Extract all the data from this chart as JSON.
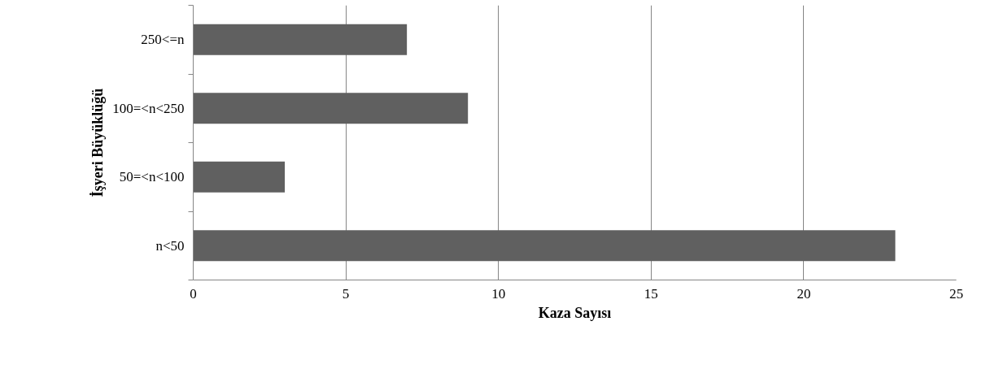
{
  "chart_data": {
    "type": "bar",
    "orientation": "horizontal",
    "xlabel": "Kaza Sayısı",
    "ylabel": "İşyeri Büyüklüğü",
    "categories": [
      "250<=n",
      "100=<n<250",
      "50=<n<100",
      "n<50"
    ],
    "values": [
      7,
      9,
      3,
      23
    ],
    "color": "#606060",
    "xlim": [
      0,
      25
    ],
    "xticks": [
      0,
      5,
      10,
      15,
      20,
      25
    ],
    "grid": "x"
  }
}
